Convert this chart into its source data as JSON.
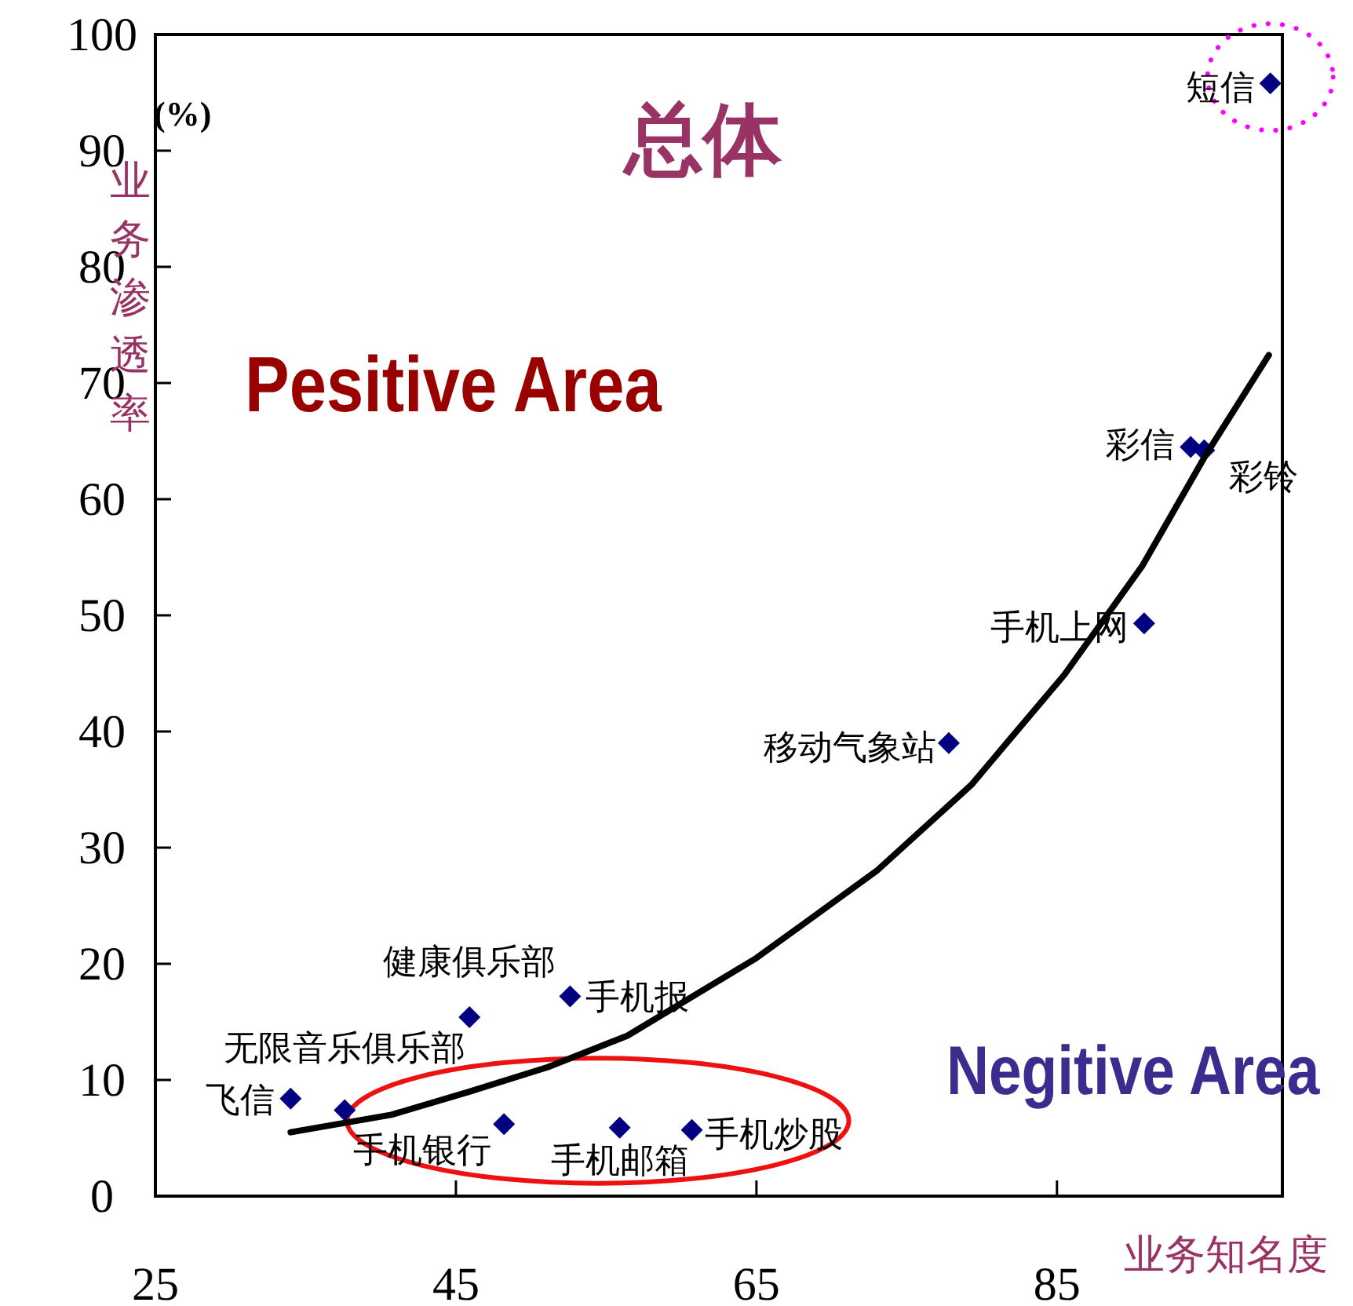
{
  "chart_data": {
    "type": "scatter",
    "title": "总体",
    "xlabel": "业务知名度",
    "ylabel": "业务渗透率",
    "xlim": [
      25,
      100
    ],
    "ylim": [
      0,
      100
    ],
    "xticks": [
      25,
      45,
      65,
      85
    ],
    "yticks": [
      0,
      10,
      20,
      30,
      40,
      50,
      60,
      70,
      80,
      90,
      100
    ],
    "marker": "diamond",
    "series": [
      {
        "type": "scatter",
        "color": "#000080",
        "x": [
          34,
          37.6,
          45.9,
          52.6,
          48.2,
          55.9,
          60.7,
          77.8,
          90.8,
          93.9,
          94.8,
          99.2
        ],
        "values": [
          8.4,
          7.4,
          15.4,
          17.2,
          6.2,
          5.9,
          5.7,
          39,
          49.3,
          64.5,
          64.2,
          95.8
        ]
      },
      {
        "type": "line",
        "color": "#000000",
        "marker": "none",
        "x": [
          34,
          40.7,
          45.9,
          51.1,
          56.4,
          65,
          73,
          79.3,
          85.5,
          90.7,
          94.9,
          99.1
        ],
        "values": [
          5.5,
          7,
          9,
          11.1,
          13.8,
          20.5,
          28,
          35.4,
          44.9,
          54.3,
          63.8,
          72.4
        ]
      }
    ],
    "annotations": [
      {
        "text": "飞信",
        "x": 34,
        "y": 8.4
      },
      {
        "text": "无限音乐俱乐部",
        "x": 37.6,
        "y": 7.4
      },
      {
        "text": "健康俱乐部",
        "x": 45.9,
        "y": 15.4
      },
      {
        "text": "手机报",
        "x": 52.6,
        "y": 17.2
      },
      {
        "text": "手机银行",
        "x": 48.2,
        "y": 6.2
      },
      {
        "text": "手机邮箱",
        "x": 55.9,
        "y": 5.9
      },
      {
        "text": "手机炒股",
        "x": 60.7,
        "y": 5.7
      },
      {
        "text": "移动气象站",
        "x": 77.8,
        "y": 39
      },
      {
        "text": "手机上网",
        "x": 90.8,
        "y": 49.3
      },
      {
        "text": "彩信",
        "x": 93.9,
        "y": 64.5
      },
      {
        "text": "彩铃",
        "x": 94.8,
        "y": 64.2
      },
      {
        "text": "短信",
        "x": 99.2,
        "y": 95.8
      },
      "(%)",
      "Pesitive Area",
      "Negitive Area"
    ]
  }
}
